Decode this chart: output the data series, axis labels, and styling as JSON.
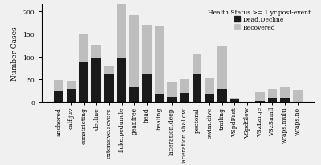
{
  "categories": [
    "anchored",
    "calf.juv",
    "constricting",
    "decline",
    "extensive.severe",
    "fluke.peduncle",
    "gear.free",
    "head",
    "healing",
    "laceration.deep",
    "laceration.shallow",
    "pectoral",
    "swim.dive",
    "trailing",
    "VSpdFast",
    "VSpdSlow",
    "VSzLarge",
    "VSzSmall",
    "wraps.multi",
    "wraps.no"
  ],
  "dead_decline": [
    25,
    28,
    88,
    98,
    60,
    98,
    32,
    62,
    18,
    12,
    20,
    62,
    18,
    28,
    7,
    0,
    2,
    10,
    10,
    0
  ],
  "recovered": [
    23,
    18,
    62,
    28,
    18,
    118,
    158,
    108,
    150,
    32,
    30,
    45,
    35,
    95,
    2,
    0,
    20,
    18,
    22,
    27
  ],
  "dead_color": "#1a1a1a",
  "recovered_color": "#bebebe",
  "ylabel": "Number Cases",
  "ylim": [
    0,
    215
  ],
  "yticks": [
    0,
    50,
    100,
    150,
    200
  ],
  "legend_title": "Health Status >= 1 yr post-event",
  "legend_labels": [
    "Dead.Decline",
    "Recovered"
  ],
  "bg_color": "#f0f0f0",
  "axis_fontsize": 6.5,
  "tick_fontsize": 5.5,
  "bar_width": 0.75
}
